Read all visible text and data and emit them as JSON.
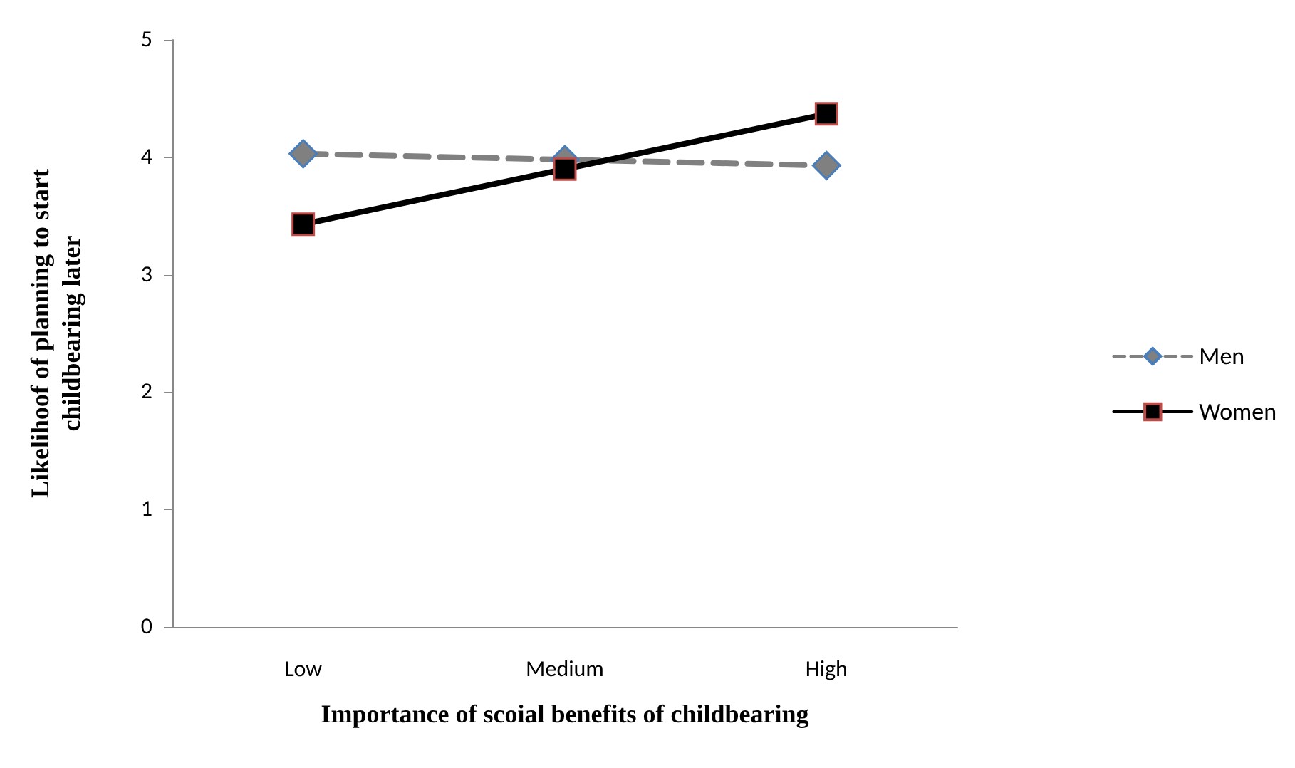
{
  "chart_data": {
    "type": "line",
    "xlabel": "Importance of scoial benefits of childbearing",
    "ylabel": "Likelihoof of planning to start\nchildbearing later",
    "categories": [
      "Low",
      "Medium",
      "High"
    ],
    "series": [
      {
        "name": "Men",
        "color": "#808080",
        "values": [
          4.03,
          3.98,
          3.93
        ],
        "marker": "diamond",
        "line_style": "dashed"
      },
      {
        "name": "Women",
        "color": "#000000",
        "values": [
          3.43,
          3.9,
          4.37
        ],
        "marker": "square",
        "line_style": "solid"
      }
    ],
    "ylim": [
      0,
      5
    ],
    "yticks": [
      0,
      1,
      2,
      3,
      4,
      5
    ],
    "grid": false,
    "legend": "right"
  }
}
